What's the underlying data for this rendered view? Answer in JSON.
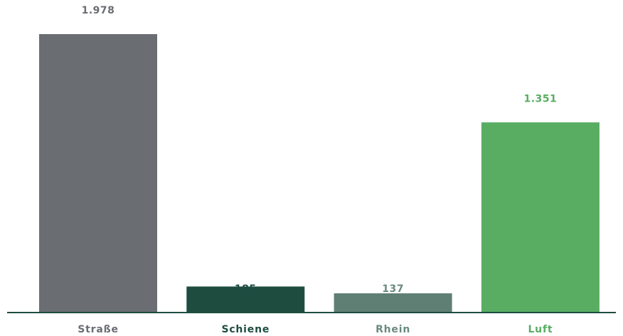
{
  "chart_data": {
    "type": "bar",
    "categories": [
      "Straße",
      "Schiene",
      "Rhein",
      "Luft"
    ],
    "values": [
      1978,
      185,
      137,
      1351
    ],
    "value_labels": [
      "1.978",
      "185",
      "137",
      "1.351"
    ],
    "colors": [
      "#6a6d72",
      "#1e4d40",
      "#5f7f74",
      "#58ad63"
    ],
    "label_colors": [
      "#6a6d72",
      "#1e4d40",
      "#6a8a7f",
      "#58ad63"
    ],
    "axis_color": "#1e4d40",
    "title": "",
    "xlabel": "",
    "ylabel": "",
    "ylim": [
      0,
      1978
    ],
    "grid": false,
    "legend": "none"
  }
}
